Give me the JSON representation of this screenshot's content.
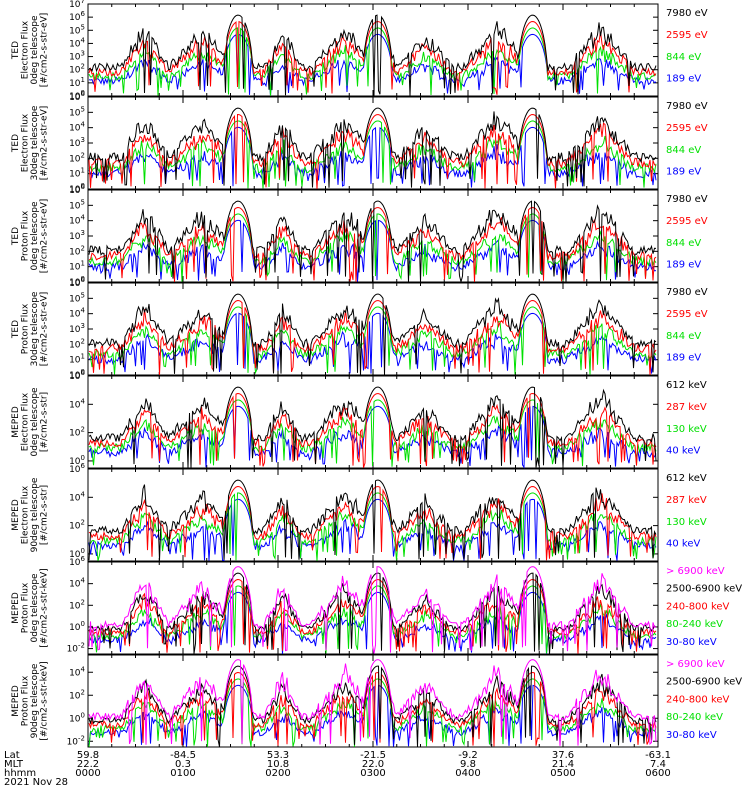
{
  "chart_data": {
    "type": "line",
    "date": "2021 Nov 28",
    "colors": {
      "black": "#000000",
      "red": "#ff0000",
      "green": "#00e000",
      "blue": "#0000ff",
      "magenta": "#ff00ff"
    },
    "x_axis": {
      "row_labels": [
        "Lat",
        "MLT",
        "hhmm"
      ],
      "ticks": [
        {
          "time": "0000",
          "lat": "59.8",
          "mlt": "22.2"
        },
        {
          "time": "0100",
          "lat": "-84.5",
          "mlt": "0.3"
        },
        {
          "time": "0200",
          "lat": "53.3",
          "mlt": "10.8"
        },
        {
          "time": "0300",
          "lat": "-21.5",
          "mlt": "22.0"
        },
        {
          "time": "0400",
          "lat": "-9.2",
          "mlt": "9.8"
        },
        {
          "time": "0500",
          "lat": "37.6",
          "mlt": "21.4"
        },
        {
          "time": "0600",
          "lat": "-63.1",
          "mlt": "7.4"
        }
      ]
    },
    "panels": [
      {
        "ylabel": [
          "TED",
          "Electron Flux",
          "0deg telescope",
          "[#/cm2-s-str-eV]"
        ],
        "yticks": [
          "10^0",
          "10^1",
          "10^2",
          "10^3",
          "10^4",
          "10^5",
          "10^6",
          "10^7"
        ],
        "ylim_exp": [
          0,
          7
        ],
        "series": [
          {
            "name": "7980 eV",
            "color": "black"
          },
          {
            "name": "2595 eV",
            "color": "red"
          },
          {
            "name": "844 eV",
            "color": "green"
          },
          {
            "name": "189 eV",
            "color": "blue"
          }
        ]
      },
      {
        "ylabel": [
          "TED",
          "Electron Flux",
          "30deg telescope",
          "[#/cm2-s-str-eV]"
        ],
        "yticks": [
          "10^0",
          "10^1",
          "10^2",
          "10^3",
          "10^4",
          "10^5",
          "10^6"
        ],
        "ylim_exp": [
          0,
          6
        ],
        "series": [
          {
            "name": "7980 eV",
            "color": "black"
          },
          {
            "name": "2595 eV",
            "color": "red"
          },
          {
            "name": "844 eV",
            "color": "green"
          },
          {
            "name": "189 eV",
            "color": "blue"
          }
        ]
      },
      {
        "ylabel": [
          "TED",
          "Proton Flux",
          "0deg telescope",
          "[#/cm2-s-str-eV]"
        ],
        "yticks": [
          "10^0",
          "10^1",
          "10^2",
          "10^3",
          "10^4",
          "10^5",
          "10^6"
        ],
        "ylim_exp": [
          0,
          6
        ],
        "series": [
          {
            "name": "7980 eV",
            "color": "black"
          },
          {
            "name": "2595 eV",
            "color": "red"
          },
          {
            "name": "844 eV",
            "color": "green"
          },
          {
            "name": "189 eV",
            "color": "blue"
          }
        ]
      },
      {
        "ylabel": [
          "TED",
          "Proton Flux",
          "30deg telescope",
          "[#/cm2-s-str-eV]"
        ],
        "yticks": [
          "10^0",
          "10^1",
          "10^2",
          "10^3",
          "10^4",
          "10^5",
          "10^6"
        ],
        "ylim_exp": [
          0,
          6
        ],
        "series": [
          {
            "name": "7980 eV",
            "color": "black"
          },
          {
            "name": "2595 eV",
            "color": "red"
          },
          {
            "name": "844 eV",
            "color": "green"
          },
          {
            "name": "189 eV",
            "color": "blue"
          }
        ]
      },
      {
        "ylabel": [
          "MEPED",
          "Electron Flux",
          "0deg telescope",
          "[#/cm2-s-str]"
        ],
        "yticks": [
          "10^0",
          "10^2",
          "10^4",
          "10^6"
        ],
        "ylim_exp": [
          -0.5,
          6
        ],
        "series": [
          {
            "name": "612 keV",
            "color": "black"
          },
          {
            "name": "287 keV",
            "color": "red"
          },
          {
            "name": "130 keV",
            "color": "green"
          },
          {
            "name": "40 keV",
            "color": "blue"
          }
        ]
      },
      {
        "ylabel": [
          "MEPED",
          "Electron Flux",
          "90deg telescope",
          "[#/cm2-s-str]"
        ],
        "yticks": [
          "10^0",
          "10^2",
          "10^4",
          "10^6"
        ],
        "ylim_exp": [
          -0.5,
          6
        ],
        "series": [
          {
            "name": "612 keV",
            "color": "black"
          },
          {
            "name": "287 keV",
            "color": "red"
          },
          {
            "name": "130 keV",
            "color": "green"
          },
          {
            "name": "40 keV",
            "color": "blue"
          }
        ]
      },
      {
        "ylabel": [
          "MEPED",
          "Proton Flux",
          "0deg telescope",
          "[#/cm2-s-str-keV]"
        ],
        "yticks": [
          "10^-2",
          "10^0",
          "10^2",
          "10^4",
          "10^6"
        ],
        "ylim_exp": [
          -2.5,
          6
        ],
        "series": [
          {
            "name": "> 6900 keV",
            "color": "magenta"
          },
          {
            "name": "2500-6900 keV",
            "color": "black"
          },
          {
            "name": "240-800 keV",
            "color": "red"
          },
          {
            "name": "80-240 keV",
            "color": "green"
          },
          {
            "name": "30-80 keV",
            "color": "blue"
          }
        ]
      },
      {
        "ylabel": [
          "MEPED",
          "Proton Flux",
          "90deg telescope",
          "[#/cm2-s-str-keV]"
        ],
        "yticks": [
          "10^-2",
          "10^0",
          "10^2",
          "10^4"
        ],
        "ylim_exp": [
          -2.5,
          5.5
        ],
        "series": [
          {
            "name": "> 6900 keV",
            "color": "magenta"
          },
          {
            "name": "2500-6900 keV",
            "color": "black"
          },
          {
            "name": "240-800 keV",
            "color": "red"
          },
          {
            "name": "80-240 keV",
            "color": "green"
          },
          {
            "name": "30-80 keV",
            "color": "blue"
          }
        ]
      }
    ]
  }
}
